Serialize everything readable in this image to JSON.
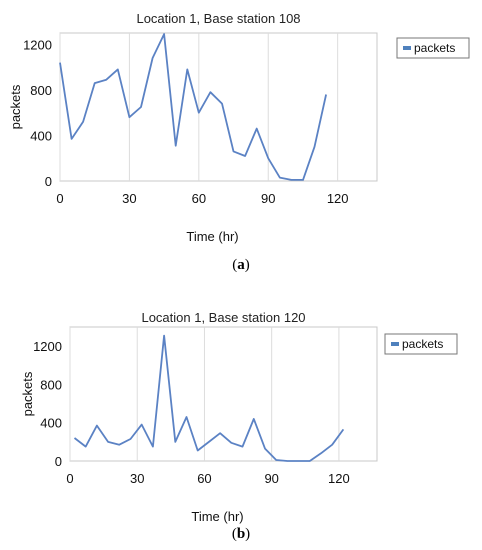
{
  "chart_data": [
    {
      "type": "line",
      "title": "Location 1, Base station 108",
      "xlabel": "Time (hr)",
      "ylabel": "packets",
      "xlim": [
        0,
        137
      ],
      "ylim": [
        0,
        1300
      ],
      "x_ticks": [
        0,
        30,
        60,
        90,
        120
      ],
      "y_ticks": [
        0,
        400,
        800,
        1200
      ],
      "grid": "vertical",
      "legend": "right",
      "series": [
        {
          "name": "packets",
          "color": "#5b82c4",
          "x": [
            0,
            5,
            10,
            15,
            20,
            25,
            30,
            35,
            40,
            45,
            50,
            55,
            60,
            65,
            70,
            75,
            80,
            85,
            90,
            95,
            100,
            105,
            110,
            115,
            120,
            125,
            130,
            135
          ],
          "y": [
            1040,
            370,
            520,
            860,
            890,
            980,
            560,
            650,
            1080,
            1290,
            310,
            980,
            600,
            780,
            680,
            260,
            220,
            460,
            200,
            30,
            10,
            10,
            300,
            760,
            null,
            null,
            null,
            null
          ]
        }
      ]
    },
    {
      "type": "line",
      "title": "Location 1, Base station 120",
      "xlabel": "Time (hr)",
      "ylabel": "packets",
      "xlim": [
        0,
        137
      ],
      "ylim": [
        0,
        1400
      ],
      "x_ticks": [
        0,
        30,
        60,
        90,
        120
      ],
      "y_ticks": [
        0,
        400,
        800,
        1200
      ],
      "grid": "vertical",
      "legend": "right",
      "series": [
        {
          "name": "packets",
          "color": "#5b82c4",
          "x": [
            2,
            7,
            12,
            17,
            22,
            27,
            32,
            37,
            42,
            47,
            52,
            57,
            62,
            67,
            72,
            77,
            82,
            87,
            92,
            97,
            102,
            107,
            112,
            117,
            122,
            127,
            132,
            137
          ],
          "y": [
            240,
            150,
            370,
            200,
            170,
            230,
            380,
            150,
            1310,
            200,
            460,
            110,
            200,
            290,
            190,
            150,
            440,
            130,
            10,
            0,
            0,
            0,
            80,
            170,
            330,
            null,
            null,
            null
          ]
        }
      ]
    }
  ],
  "captions": [
    "a",
    "b"
  ]
}
